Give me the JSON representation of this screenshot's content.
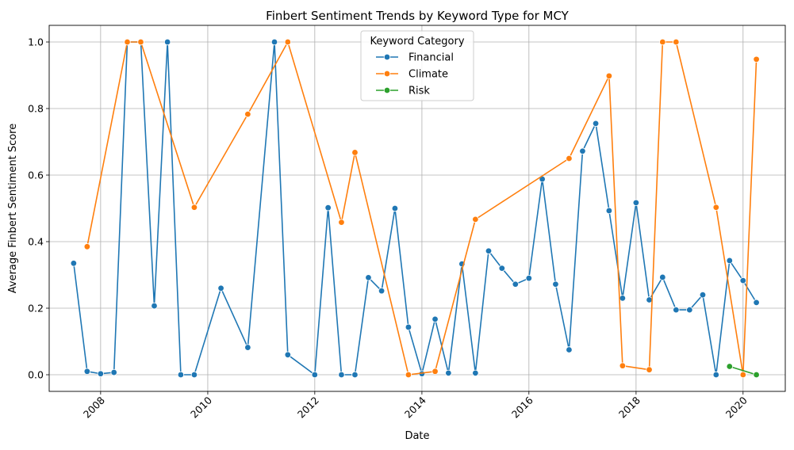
{
  "chart_data": {
    "type": "line",
    "title": "Finbert Sentiment Trends by Keyword Type for MCY",
    "xlabel": "Date",
    "ylabel": "Average Finbert Sentiment Score",
    "x_type": "date",
    "xlim": [
      "2007-01-15",
      "2020-10-15"
    ],
    "ylim": [
      -0.05,
      1.05
    ],
    "x_ticks": [
      "2008",
      "2010",
      "2012",
      "2014",
      "2016",
      "2018",
      "2020"
    ],
    "y_ticks": [
      "0.0",
      "0.2",
      "0.4",
      "0.6",
      "0.8",
      "1.0"
    ],
    "grid": true,
    "legend": {
      "title": "Keyword Category",
      "placement": "top-center"
    },
    "series": [
      {
        "name": "Financial",
        "color": "#1f77b4",
        "points": [
          [
            "2007-07-01",
            0.335
          ],
          [
            "2007-10-01",
            0.01
          ],
          [
            "2008-01-01",
            0.003
          ],
          [
            "2008-04-01",
            0.007
          ],
          [
            "2008-07-01",
            1.0
          ],
          [
            "2008-10-01",
            1.0
          ],
          [
            "2009-01-01",
            0.207
          ],
          [
            "2009-04-01",
            1.0
          ],
          [
            "2009-07-01",
            0.0
          ],
          [
            "2009-10-01",
            0.0
          ],
          [
            "2010-04-01",
            0.26
          ],
          [
            "2010-10-01",
            0.082
          ],
          [
            "2011-04-01",
            1.0
          ],
          [
            "2011-07-01",
            0.06
          ],
          [
            "2012-01-01",
            0.0
          ],
          [
            "2012-04-01",
            0.502
          ],
          [
            "2012-07-01",
            0.0
          ],
          [
            "2012-10-01",
            0.0
          ],
          [
            "2013-01-01",
            0.292
          ],
          [
            "2013-04-01",
            0.252
          ],
          [
            "2013-07-01",
            0.5
          ],
          [
            "2013-10-01",
            0.143
          ],
          [
            "2014-01-01",
            0.003
          ],
          [
            "2014-04-01",
            0.167
          ],
          [
            "2014-07-01",
            0.005
          ],
          [
            "2014-10-01",
            0.333
          ],
          [
            "2015-01-01",
            0.005
          ],
          [
            "2015-04-01",
            0.372
          ],
          [
            "2015-07-01",
            0.32
          ],
          [
            "2015-10-01",
            0.272
          ],
          [
            "2016-01-01",
            0.29
          ],
          [
            "2016-04-01",
            0.588
          ],
          [
            "2016-07-01",
            0.272
          ],
          [
            "2016-10-01",
            0.075
          ],
          [
            "2017-01-01",
            0.672
          ],
          [
            "2017-04-01",
            0.755
          ],
          [
            "2017-07-01",
            0.493
          ],
          [
            "2017-10-01",
            0.23
          ],
          [
            "2018-01-01",
            0.517
          ],
          [
            "2018-04-01",
            0.225
          ],
          [
            "2018-07-01",
            0.293
          ],
          [
            "2018-10-01",
            0.195
          ],
          [
            "2019-01-01",
            0.195
          ],
          [
            "2019-04-01",
            0.24
          ],
          [
            "2019-07-01",
            0.0
          ],
          [
            "2019-10-01",
            0.343
          ],
          [
            "2020-01-01",
            0.283
          ],
          [
            "2020-04-01",
            0.217
          ]
        ]
      },
      {
        "name": "Climate",
        "color": "#ff7f0e",
        "points": [
          [
            "2007-10-01",
            0.385
          ],
          [
            "2008-07-01",
            1.0
          ],
          [
            "2008-10-01",
            1.0
          ],
          [
            "2009-10-01",
            0.503
          ],
          [
            "2010-10-01",
            0.783
          ],
          [
            "2011-07-01",
            1.0
          ],
          [
            "2012-07-01",
            0.458
          ],
          [
            "2012-10-01",
            0.668
          ],
          [
            "2013-10-01",
            0.0
          ],
          [
            "2014-04-01",
            0.01
          ],
          [
            "2015-01-01",
            0.467
          ],
          [
            "2016-10-01",
            0.65
          ],
          [
            "2017-07-01",
            0.898
          ],
          [
            "2017-10-01",
            0.027
          ],
          [
            "2018-04-01",
            0.015
          ],
          [
            "2018-07-01",
            1.0
          ],
          [
            "2018-10-01",
            1.0
          ],
          [
            "2019-07-01",
            0.503
          ],
          [
            "2020-01-01",
            0.0
          ],
          [
            "2020-04-01",
            0.948
          ]
        ]
      },
      {
        "name": "Risk",
        "color": "#2ca02c",
        "points": [
          [
            "2019-10-01",
            0.025
          ],
          [
            "2020-04-01",
            0.0
          ]
        ]
      }
    ]
  }
}
